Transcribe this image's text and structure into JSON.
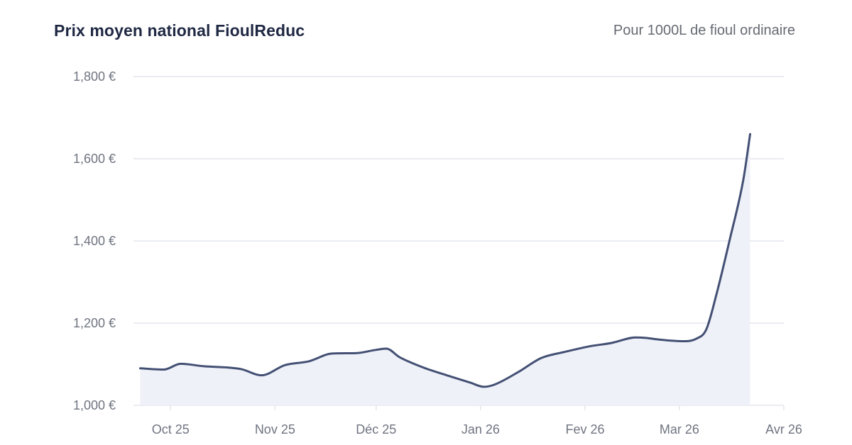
{
  "header": {
    "title": "Prix moyen national FioulReduc",
    "subtitle": "Pour 1000L de fioul ordinaire"
  },
  "colors": {
    "line": "#435074",
    "area": "#eff1f8",
    "grid": "#e3e5ee",
    "title": "#1f2843",
    "axis_text": "#6f7480"
  },
  "chart_data": {
    "type": "area",
    "title": "Prix moyen national FioulReduc",
    "subtitle": "Pour 1000L de fioul ordinaire",
    "xlabel": "",
    "ylabel": "",
    "grid": true,
    "legend": "none",
    "ylim": [
      1000,
      1800
    ],
    "yticks": [
      1000,
      1200,
      1400,
      1600,
      1800
    ],
    "ytick_labels": [
      "1,000 €",
      "1,200 €",
      "1,400 €",
      "1,600 €",
      "1,800 €"
    ],
    "xlim": [
      "2025-09-20",
      "2026-04-01"
    ],
    "xticks": [
      {
        "label": "Oct 25",
        "date": "2025-10-01"
      },
      {
        "label": "Nov 25",
        "date": "2025-11-01"
      },
      {
        "label": "Déc 25",
        "date": "2025-12-01"
      },
      {
        "label": "Jan 26",
        "date": "2026-01-01"
      },
      {
        "label": "Fev 26",
        "date": "2026-02-01"
      },
      {
        "label": "Mar 26",
        "date": "2026-03-01"
      },
      {
        "label": "Avr 26",
        "date": "2026-04-01"
      }
    ],
    "series": [
      {
        "name": "Prix moyen national",
        "points": [
          {
            "date": "2025-09-22",
            "value": 1090
          },
          {
            "date": "2025-09-29",
            "value": 1087
          },
          {
            "date": "2025-10-04",
            "value": 1101
          },
          {
            "date": "2025-10-11",
            "value": 1095
          },
          {
            "date": "2025-10-18",
            "value": 1092
          },
          {
            "date": "2025-10-22",
            "value": 1088
          },
          {
            "date": "2025-10-28",
            "value": 1073
          },
          {
            "date": "2025-11-04",
            "value": 1098
          },
          {
            "date": "2025-11-11",
            "value": 1107
          },
          {
            "date": "2025-11-18",
            "value": 1126
          },
          {
            "date": "2025-11-25",
            "value": 1127
          },
          {
            "date": "2025-12-01",
            "value": 1135
          },
          {
            "date": "2025-12-04",
            "value": 1138
          },
          {
            "date": "2025-12-08",
            "value": 1117
          },
          {
            "date": "2025-12-15",
            "value": 1092
          },
          {
            "date": "2025-12-22",
            "value": 1073
          },
          {
            "date": "2025-12-29",
            "value": 1055
          },
          {
            "date": "2026-01-02",
            "value": 1045
          },
          {
            "date": "2026-01-05",
            "value": 1050
          },
          {
            "date": "2026-01-12",
            "value": 1080
          },
          {
            "date": "2026-01-19",
            "value": 1115
          },
          {
            "date": "2026-01-26",
            "value": 1130
          },
          {
            "date": "2026-02-02",
            "value": 1143
          },
          {
            "date": "2026-02-09",
            "value": 1152
          },
          {
            "date": "2026-02-16",
            "value": 1165
          },
          {
            "date": "2026-02-19",
            "value": 1164
          },
          {
            "date": "2026-02-23",
            "value": 1160
          },
          {
            "date": "2026-03-02",
            "value": 1156
          },
          {
            "date": "2026-03-06",
            "value": 1162
          },
          {
            "date": "2026-03-09",
            "value": 1185
          },
          {
            "date": "2026-03-12",
            "value": 1270
          },
          {
            "date": "2026-03-16",
            "value": 1405
          },
          {
            "date": "2026-03-20",
            "value": 1550
          },
          {
            "date": "2026-03-22",
            "value": 1660
          }
        ]
      }
    ]
  }
}
